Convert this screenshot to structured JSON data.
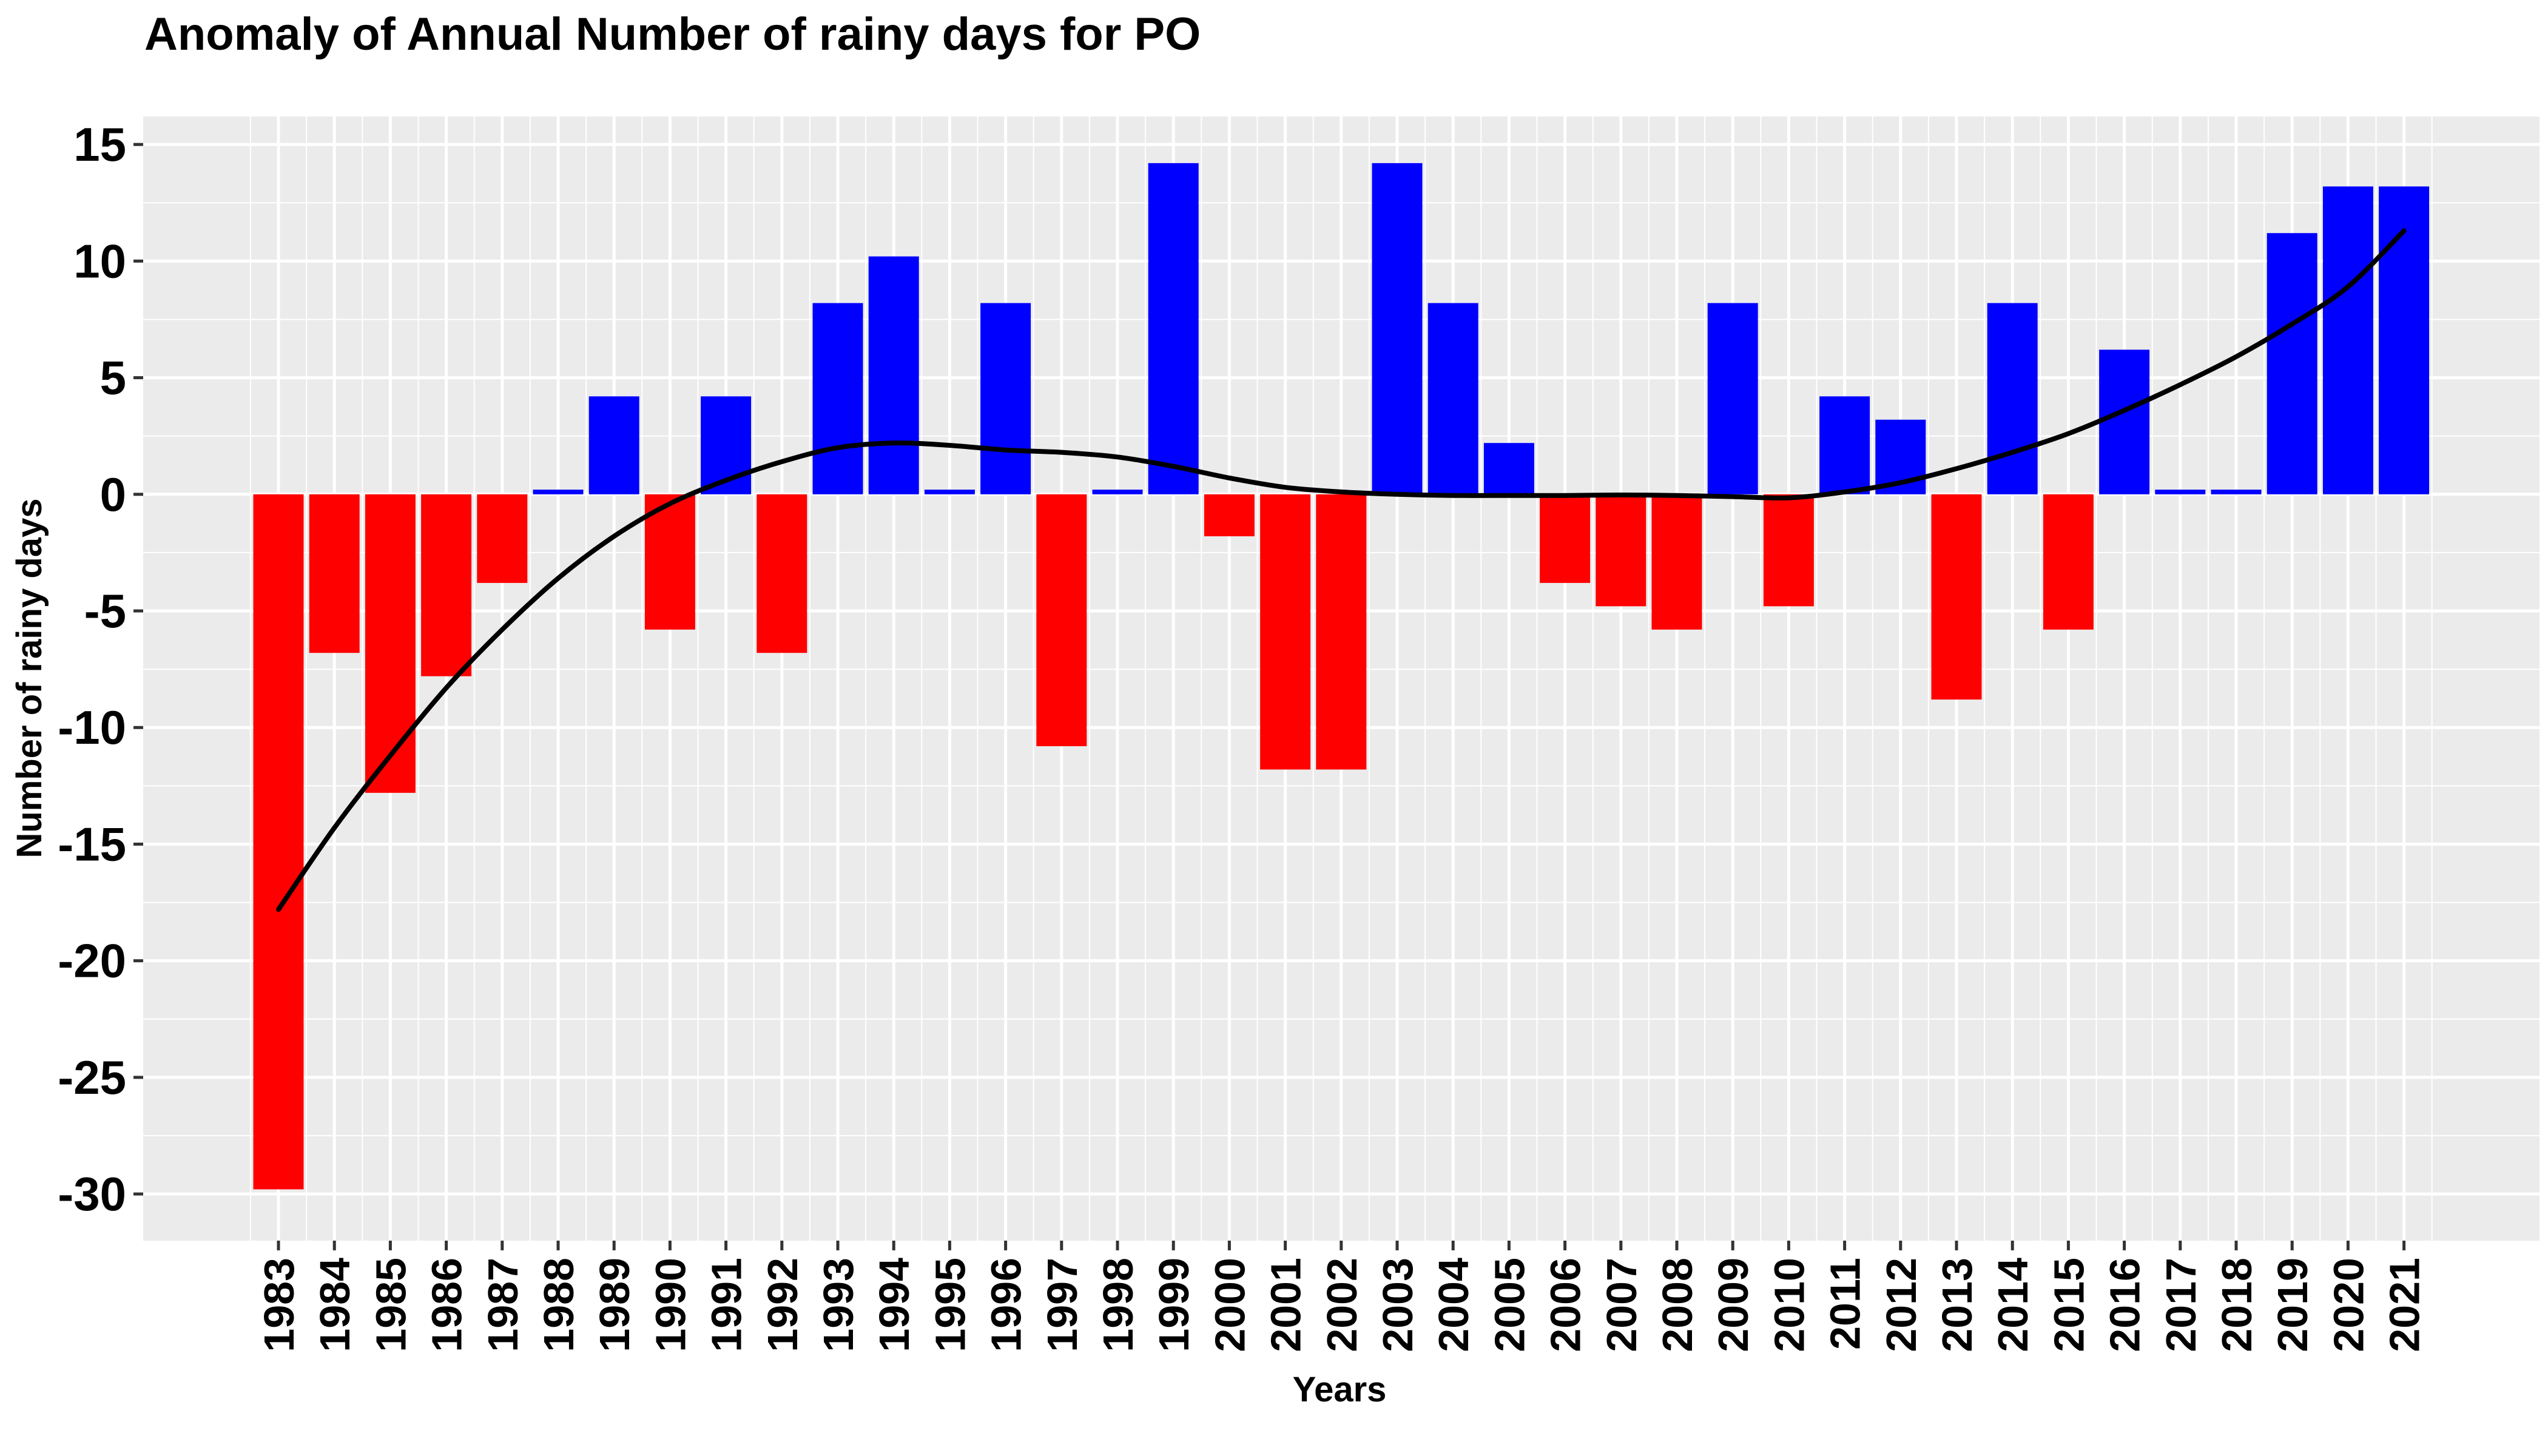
{
  "chart_data": {
    "type": "bar",
    "title": "Anomaly of Annual Number of rainy days for PO",
    "xlabel": "Years",
    "ylabel": "Number of rainy days",
    "categories": [
      "1983",
      "1984",
      "1985",
      "1986",
      "1987",
      "1988",
      "1989",
      "1990",
      "1991",
      "1992",
      "1993",
      "1994",
      "1995",
      "1996",
      "1997",
      "1998",
      "1999",
      "2000",
      "2001",
      "2002",
      "2003",
      "2004",
      "2005",
      "2006",
      "2007",
      "2008",
      "2009",
      "2010",
      "2011",
      "2012",
      "2013",
      "2014",
      "2015",
      "2016",
      "2017",
      "2018",
      "2019",
      "2020",
      "2021"
    ],
    "values": [
      -29.8,
      -6.8,
      -12.8,
      -7.8,
      -3.8,
      0.2,
      4.2,
      -5.8,
      4.2,
      -6.8,
      8.2,
      10.2,
      0.2,
      8.2,
      -10.8,
      0.2,
      14.2,
      -1.8,
      -11.8,
      -11.8,
      14.2,
      8.2,
      2.2,
      -3.8,
      -4.8,
      -5.8,
      8.2,
      -4.8,
      4.2,
      3.2,
      -8.8,
      8.2,
      -5.8,
      6.2,
      0.2,
      0.2,
      11.2,
      13.2,
      13.2
    ],
    "smooth_line": [
      -17.8,
      -14.3,
      -11.2,
      -8.3,
      -5.8,
      -3.6,
      -1.8,
      -0.4,
      0.6,
      1.4,
      2.0,
      2.2,
      2.1,
      1.9,
      1.8,
      1.6,
      1.2,
      0.7,
      0.3,
      0.1,
      0.0,
      -0.05,
      -0.05,
      -0.05,
      -0.03,
      -0.05,
      -0.1,
      -0.15,
      0.1,
      0.5,
      1.1,
      1.8,
      2.6,
      3.6,
      4.7,
      5.9,
      7.3,
      8.9,
      11.3
    ],
    "ylim": [
      -32,
      16.2
    ],
    "yticks": [
      "15",
      "10",
      "5",
      "0",
      "-5",
      "-10",
      "-15",
      "-20",
      "-25",
      "-30"
    ],
    "colors": {
      "positive": "#0000ff",
      "negative": "#ff0000",
      "smooth": "#000000",
      "panel": "#ebebeb",
      "grid": "#ffffff"
    },
    "grid": true,
    "legend": "none"
  }
}
